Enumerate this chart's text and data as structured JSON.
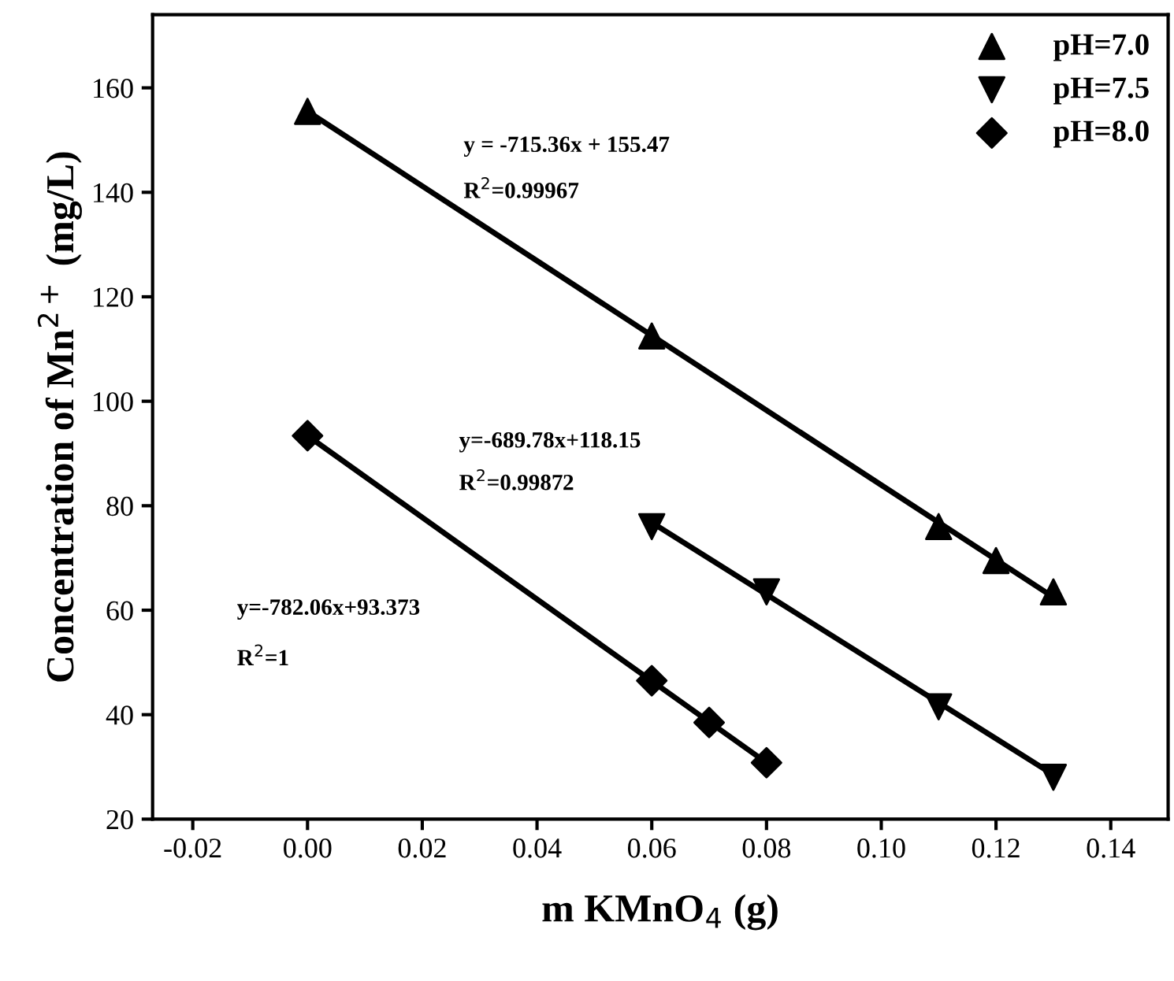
{
  "chart_data": {
    "type": "scatter",
    "xlabel": "m KMnO$_{4}$ (g)",
    "ylabel": "Concentration of Mn$^{2+}$ (mg/L)",
    "series": [
      {
        "name": "pH=7.0",
        "marker": "triangle",
        "color": "#000000",
        "x": [
          0,
          0.06,
          0.11,
          0.12,
          0.13
        ],
        "values": [
          155.5,
          112.5,
          76,
          69.5,
          63.5
        ]
      },
      {
        "name": "pH=7.5",
        "marker": "triangle_down",
        "color": "#000000",
        "x": [
          0.06,
          0.08,
          0.11,
          0.13
        ],
        "values": [
          76,
          63.5,
          41.5,
          28
        ]
      },
      {
        "name": "pH=8.0",
        "marker": "diamond",
        "color": "#000000",
        "x": [
          0,
          0.06,
          0.07,
          0.08
        ],
        "values": [
          93.4,
          46.5,
          38.5,
          30.8
        ]
      },
      {
        "type": "line",
        "color": "#000000",
        "x": [
          0,
          0.13
        ],
        "values": [
          155.5,
          62.5
        ]
      },
      {
        "type": "line",
        "color": "#000000",
        "x": [
          0.06,
          0.13
        ],
        "values": [
          76.8,
          28.5
        ]
      },
      {
        "type": "line",
        "color": "#000000",
        "x": [
          0,
          0.08
        ],
        "values": [
          93.4,
          30.8
        ]
      }
    ],
    "annotations": [
      "y = -715.36x + 155.47",
      "R$^{2}$=0.99967",
      "y=-689.78x+118.15",
      "R$^{2}$=0.99872",
      "y=-782.06x+93.373",
      "R$^{2}$=1"
    ],
    "xlim": [
      -0.027,
      0.15
    ],
    "xticks": [
      {
        "value": -0.02,
        "label": "-0.02"
      },
      {
        "value": 0,
        "label": "0.00"
      },
      {
        "value": 0.02,
        "label": "0.02"
      },
      {
        "value": 0.04,
        "label": "0.04"
      },
      {
        "value": 0.06,
        "label": "0.06"
      },
      {
        "value": 0.08,
        "label": "0.08"
      },
      {
        "value": 0.1,
        "label": "0.10"
      },
      {
        "value": 0.12,
        "label": "0.12"
      },
      {
        "value": 0.14,
        "label": "0.14"
      }
    ],
    "ylim": [
      20,
      174
    ],
    "yticks": [
      20,
      40,
      60,
      80,
      100,
      120,
      140,
      160
    ],
    "legend": "top right",
    "grid": false
  }
}
